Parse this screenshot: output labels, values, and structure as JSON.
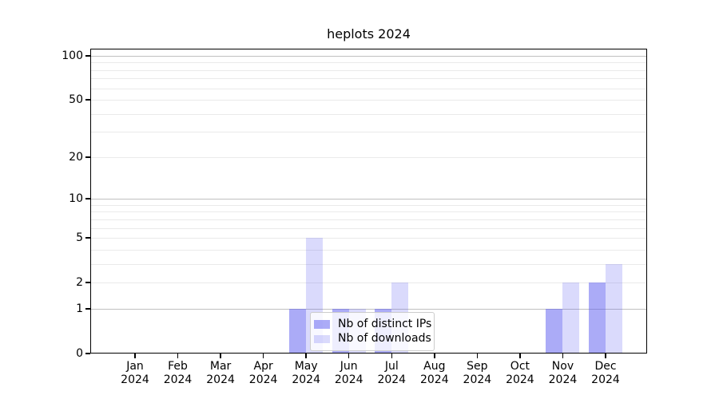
{
  "chart_data": {
    "type": "bar",
    "title": "heplots 2024",
    "categories": [
      "Jan",
      "Feb",
      "Mar",
      "Apr",
      "May",
      "Jun",
      "Jul",
      "Aug",
      "Sep",
      "Oct",
      "Nov",
      "Dec"
    ],
    "year": "2024",
    "series": [
      {
        "name": "Nb of distinct IPs",
        "color": "rgba(87,87,240,0.5)",
        "values": [
          0,
          0,
          0,
          0,
          1,
          1,
          1,
          0,
          0,
          0,
          1,
          2
        ]
      },
      {
        "name": "Nb of downloads",
        "color": "rgba(87,87,240,0.22)",
        "values": [
          0,
          0,
          0,
          0,
          5,
          1,
          2,
          0,
          0,
          0,
          2,
          3
        ]
      }
    ],
    "yticks": [
      0,
      1,
      2,
      5,
      10,
      20,
      50,
      100
    ],
    "xlabel": "",
    "ylabel": "",
    "scale": "log1p",
    "ylim": [
      0,
      113
    ],
    "grid": {
      "major": [
        1,
        10,
        100
      ],
      "minor": [
        2,
        3,
        4,
        5,
        6,
        7,
        8,
        9,
        20,
        30,
        40,
        50,
        60,
        70,
        80,
        90
      ]
    },
    "legend": {
      "position": "bottom-center",
      "entries": [
        "Nb of distinct IPs",
        "Nb of downloads"
      ]
    }
  },
  "colors": {
    "bar_distinct_ips": "rgba(87,87,240,0.5)",
    "bar_downloads": "rgba(87,87,240,0.22)",
    "grid_major": "#c0c0c0",
    "grid_minor": "#eaeaea",
    "spine": "#000000",
    "legend_border": "#cccccc"
  }
}
